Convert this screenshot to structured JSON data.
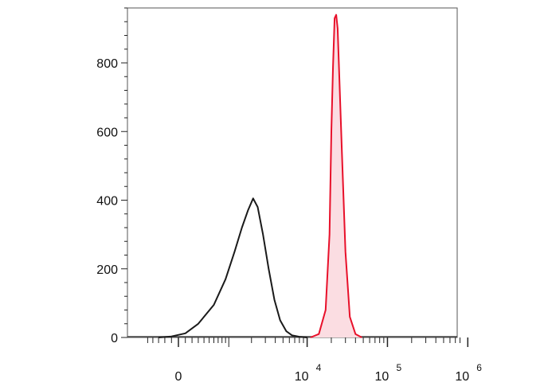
{
  "chart_data": {
    "type": "area",
    "title": "",
    "xlabel": "",
    "ylabel": "",
    "x_scale": "biexponential",
    "ylim": [
      0,
      960
    ],
    "y_ticks": [
      {
        "label": "0",
        "value": 0
      },
      {
        "label": "200",
        "value": 200
      },
      {
        "label": "400",
        "value": 400
      },
      {
        "label": "600",
        "value": 600
      },
      {
        "label": "800",
        "value": 800
      }
    ],
    "x_ticks": [
      {
        "label": "0",
        "exp": "",
        "value": 0
      },
      {
        "label": "10",
        "exp": "4",
        "value": 10000
      },
      {
        "label": "10",
        "exp": "5",
        "value": 100000
      },
      {
        "label": "10",
        "exp": "6",
        "value": 1000000
      }
    ],
    "series": [
      {
        "color": "#1a1a1a",
        "fill": false,
        "points": [
          [
            -300,
            0
          ],
          [
            -100,
            3
          ],
          [
            100,
            12
          ],
          [
            300,
            40
          ],
          [
            600,
            95
          ],
          [
            900,
            170
          ],
          [
            1200,
            250
          ],
          [
            1500,
            320
          ],
          [
            1800,
            370
          ],
          [
            2100,
            405
          ],
          [
            2400,
            380
          ],
          [
            2800,
            300
          ],
          [
            3300,
            200
          ],
          [
            3900,
            110
          ],
          [
            4600,
            50
          ],
          [
            5500,
            18
          ],
          [
            6500,
            6
          ],
          [
            8000,
            2
          ],
          [
            10000,
            0
          ]
        ]
      },
      {
        "color": "#e8102a",
        "fill": true,
        "fill_color": "#fbdde2",
        "points": [
          [
            11000,
            0
          ],
          [
            14000,
            10
          ],
          [
            17000,
            80
          ],
          [
            19000,
            300
          ],
          [
            20000,
            600
          ],
          [
            21000,
            790
          ],
          [
            22000,
            930
          ],
          [
            23000,
            940
          ],
          [
            24000,
            900
          ],
          [
            25000,
            780
          ],
          [
            27000,
            550
          ],
          [
            30000,
            250
          ],
          [
            34000,
            60
          ],
          [
            40000,
            10
          ],
          [
            48000,
            0
          ]
        ]
      }
    ],
    "grid": false,
    "legend": "none"
  }
}
